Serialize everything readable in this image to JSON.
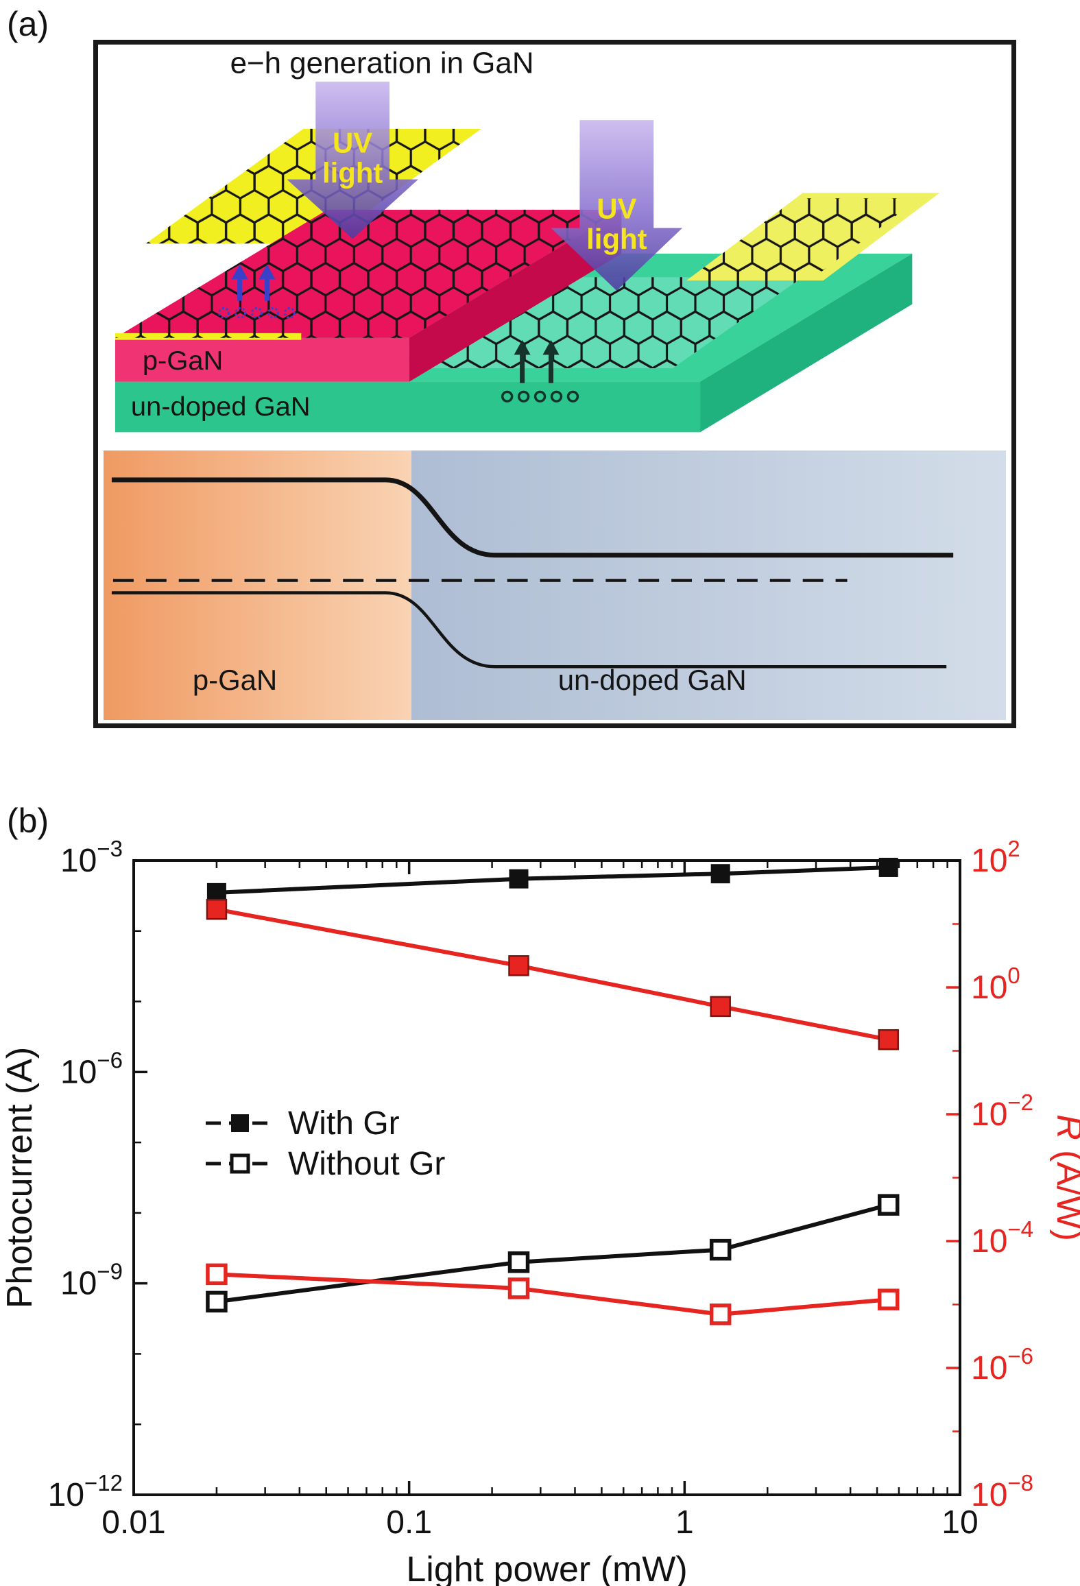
{
  "panels": {
    "a": {
      "label": "(a)",
      "title": "e−h generation in GaN",
      "uv_label_line1": "UV",
      "uv_label_line2": "light",
      "schematic": {
        "p_gan_label": "p-GaN",
        "undoped_label": "un-doped GaN"
      },
      "band_diagram": {
        "p_gan_label": "p-GaN",
        "undoped_label": "un-doped GaN"
      },
      "colors": {
        "gan_green": "#38d29a",
        "p_gan_magenta": "#e9145c",
        "electrode_yellow": "#f2ef21",
        "uv_arrow_purple": "#6a54b8",
        "uv_text_yellow": "#f6e41e",
        "band_p_orange": "#f09a62",
        "band_n_blue": "#aebdd4"
      }
    },
    "b": {
      "label": "(b)"
    }
  },
  "chart_data": {
    "type": "line",
    "x_label": "Light power (mW)",
    "y_left_label": "Photocurrent (A)",
    "y_right_label": "R (A/W)",
    "y_right_label_italic": "R",
    "y_right_label_rest": " (A/W)",
    "x_scale": "log",
    "y_scale": "log",
    "x_range": [
      0.01,
      10
    ],
    "x_ticks": [
      0.01,
      0.1,
      1,
      10
    ],
    "x_tick_labels": [
      "0.01",
      "0.1",
      "1",
      "10"
    ],
    "y_left_range_exp": [
      -12,
      -3
    ],
    "y_left_ticks_exp": [
      -3,
      -6,
      -9,
      -12
    ],
    "y_right_range_exp": [
      -8,
      2
    ],
    "y_right_ticks_exp": [
      2,
      0,
      -2,
      -4,
      -6,
      -8
    ],
    "accent_red": "#e62420",
    "x_mW": [
      0.02,
      0.25,
      1.35,
      5.5
    ],
    "series": [
      {
        "name": "With Gr photocurrent",
        "axis": "left",
        "marker": "filled",
        "color": "#111111",
        "values": [
          0.00035,
          0.00055,
          0.00065,
          0.0008
        ]
      },
      {
        "name": "With Gr responsivity",
        "axis": "right",
        "marker": "filled",
        "color": "#e62420",
        "values": [
          17,
          2.2,
          0.5,
          0.15
        ]
      },
      {
        "name": "Without Gr photocurrent",
        "axis": "left",
        "marker": "open",
        "color": "#111111",
        "values": [
          5.5e-10,
          2e-09,
          3e-09,
          1.3e-08
        ]
      },
      {
        "name": "Without Gr responsivity",
        "axis": "right",
        "marker": "open",
        "color": "#e62420",
        "values": [
          3e-05,
          1.8e-05,
          7e-06,
          1.2e-05
        ]
      }
    ],
    "legend": [
      {
        "label": "With Gr",
        "marker": "filled"
      },
      {
        "label": "Without Gr",
        "marker": "open"
      }
    ]
  }
}
